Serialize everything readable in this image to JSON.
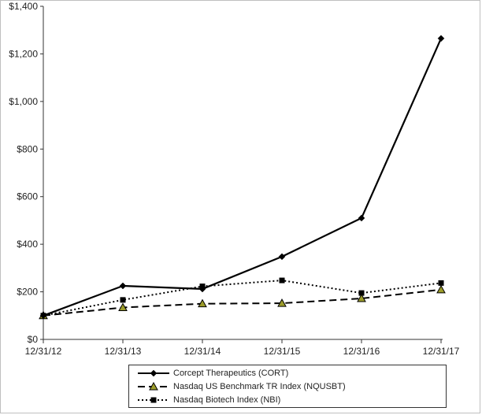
{
  "chart_data": {
    "type": "line",
    "x": [
      "12/31/12",
      "12/31/13",
      "12/31/14",
      "12/31/15",
      "12/31/16",
      "12/31/17"
    ],
    "ylim": [
      0,
      1400
    ],
    "yticks": [
      0,
      200,
      400,
      600,
      800,
      1000,
      1200,
      1400
    ],
    "ytick_labels": [
      "$0",
      "$200",
      "$400",
      "$600",
      "$800",
      "$1,000",
      "$1,200",
      "$1,400"
    ],
    "grid": false,
    "legend_position": "bottom",
    "series": [
      {
        "name": "Corcept Therapeutics (CORT)",
        "values": [
          100,
          225,
          212,
          348,
          510,
          1265
        ],
        "color": "#000000",
        "line_style": "solid",
        "marker": "diamond"
      },
      {
        "name": "Nasdaq US Benchmark TR Index (NQUSBT)",
        "values": [
          100,
          134,
          150,
          152,
          172,
          209
        ],
        "color": "#000000",
        "line_style": "dashed",
        "marker": "triangle"
      },
      {
        "name": "Nasdaq Biotech Index (NBI)",
        "values": [
          100,
          166,
          223,
          248,
          195,
          237
        ],
        "color": "#000000",
        "line_style": "dotted",
        "marker": "square"
      }
    ]
  }
}
